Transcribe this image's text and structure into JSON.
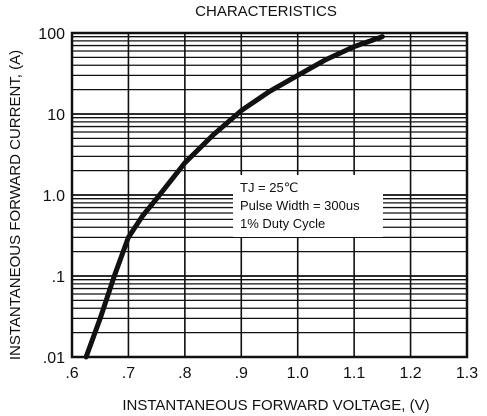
{
  "chart_data": {
    "type": "line",
    "title": "CHARACTERISTICS",
    "xlabel": "INSTANTANEOUS FORWARD VOLTAGE, (V)",
    "ylabel": "INSTANTANEOUS FORWARD CURRENT, (A)",
    "xlim": [
      0.6,
      1.3
    ],
    "ylim": [
      0.01,
      100
    ],
    "yscale": "log",
    "grid": true,
    "x_ticks": [
      0.6,
      0.7,
      0.8,
      0.9,
      1.0,
      1.1,
      1.2,
      1.3
    ],
    "x_tick_labels": [
      ".6",
      ".7",
      ".8",
      ".9",
      "1.0",
      "1.1",
      "1.2",
      "1.3"
    ],
    "y_ticks": [
      0.01,
      0.1,
      1,
      10,
      100
    ],
    "y_tick_labels": [
      ".01",
      ".1",
      "1.0",
      "10",
      "100"
    ],
    "series": [
      {
        "x": [
          0.625,
          0.65,
          0.675,
          0.7,
          0.725,
          0.75,
          0.8,
          0.85,
          0.9,
          0.95,
          1.0,
          1.05,
          1.1,
          1.15
        ],
        "y": [
          0.01,
          0.03,
          0.1,
          0.3,
          0.55,
          0.9,
          2.5,
          5.5,
          11,
          19,
          30,
          47,
          68,
          90
        ],
        "color": "#111111"
      }
    ],
    "annotation": {
      "lines": [
        "TJ = 25℃",
        "Pulse Width = 300us",
        "1% Duty Cycle"
      ]
    }
  }
}
